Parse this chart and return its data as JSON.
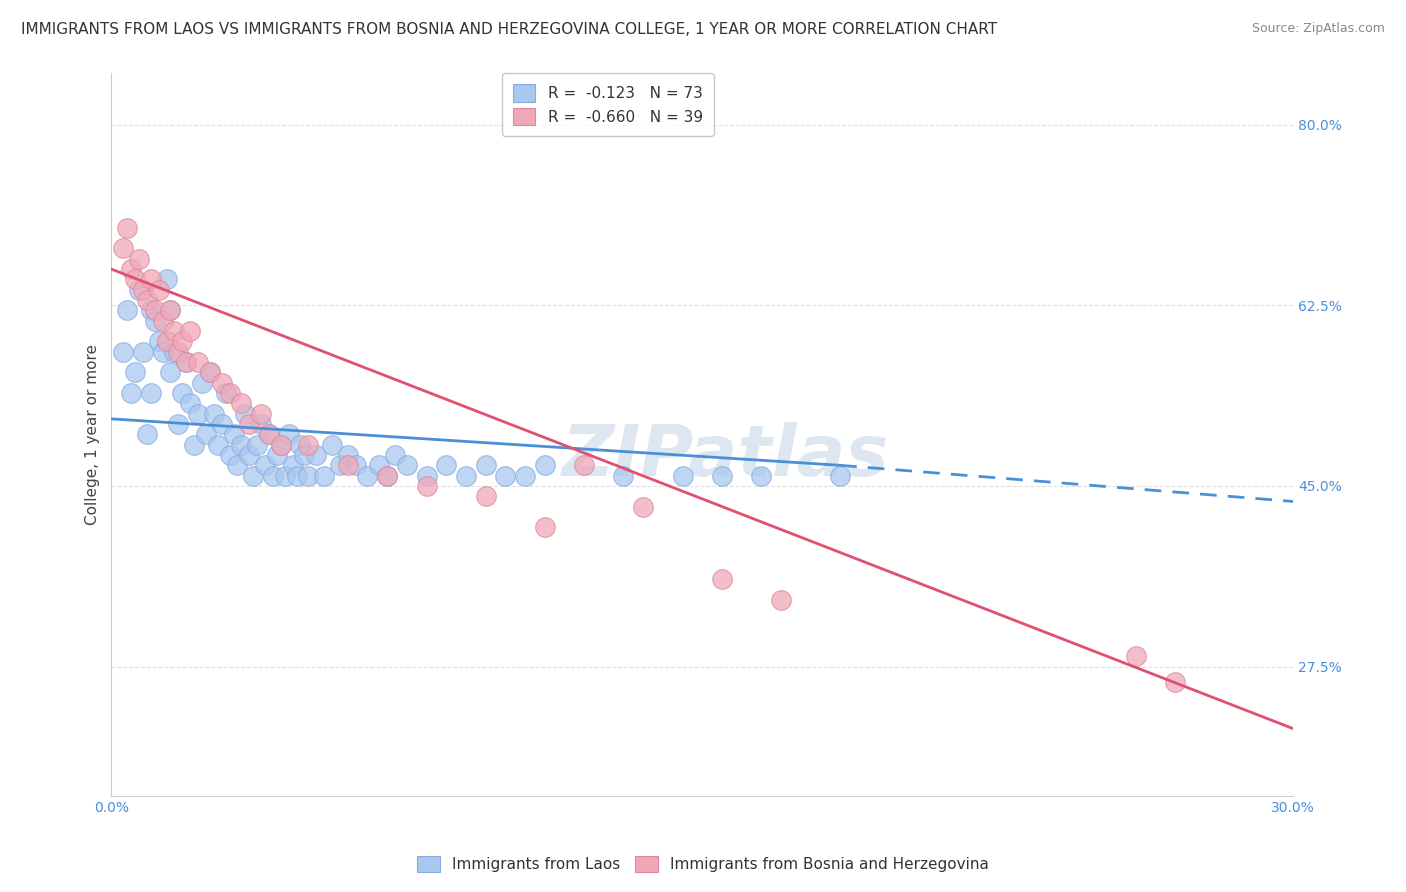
{
  "title": "IMMIGRANTS FROM LAOS VS IMMIGRANTS FROM BOSNIA AND HERZEGOVINA COLLEGE, 1 YEAR OR MORE CORRELATION CHART",
  "source": "Source: ZipAtlas.com",
  "ylabel": "College, 1 year or more",
  "xlim": [
    0.0,
    0.3
  ],
  "ylim": [
    0.15,
    0.85
  ],
  "yticks": [
    0.275,
    0.45,
    0.625,
    0.8
  ],
  "ytick_labels": [
    "27.5%",
    "45.0%",
    "62.5%",
    "80.0%"
  ],
  "xticks": [
    0.0,
    0.05,
    0.1,
    0.15,
    0.2,
    0.25,
    0.3
  ],
  "xtick_labels": [
    "0.0%",
    "",
    "",
    "",
    "",
    "",
    "30.0%"
  ],
  "legend_blue_r": "-0.123",
  "legend_blue_n": "73",
  "legend_pink_r": "-0.660",
  "legend_pink_n": "39",
  "blue_color": "#a8c8f0",
  "pink_color": "#f0a8b8",
  "blue_line_color": "#4a90d9",
  "pink_line_color": "#e05070",
  "watermark": "ZIPatlas",
  "blue_scatter_x": [
    0.003,
    0.004,
    0.005,
    0.006,
    0.007,
    0.008,
    0.009,
    0.01,
    0.01,
    0.011,
    0.012,
    0.013,
    0.014,
    0.015,
    0.015,
    0.016,
    0.017,
    0.018,
    0.019,
    0.02,
    0.021,
    0.022,
    0.023,
    0.024,
    0.025,
    0.026,
    0.027,
    0.028,
    0.029,
    0.03,
    0.031,
    0.032,
    0.033,
    0.034,
    0.035,
    0.036,
    0.037,
    0.038,
    0.039,
    0.04,
    0.041,
    0.042,
    0.043,
    0.044,
    0.045,
    0.046,
    0.047,
    0.048,
    0.049,
    0.05,
    0.052,
    0.054,
    0.056,
    0.058,
    0.06,
    0.062,
    0.065,
    0.068,
    0.07,
    0.072,
    0.075,
    0.08,
    0.085,
    0.09,
    0.095,
    0.1,
    0.105,
    0.11,
    0.13,
    0.145,
    0.155,
    0.165,
    0.185
  ],
  "blue_scatter_y": [
    0.58,
    0.62,
    0.54,
    0.56,
    0.64,
    0.58,
    0.5,
    0.62,
    0.54,
    0.61,
    0.59,
    0.58,
    0.65,
    0.62,
    0.56,
    0.58,
    0.51,
    0.54,
    0.57,
    0.53,
    0.49,
    0.52,
    0.55,
    0.5,
    0.56,
    0.52,
    0.49,
    0.51,
    0.54,
    0.48,
    0.5,
    0.47,
    0.49,
    0.52,
    0.48,
    0.46,
    0.49,
    0.51,
    0.47,
    0.5,
    0.46,
    0.48,
    0.49,
    0.46,
    0.5,
    0.47,
    0.46,
    0.49,
    0.48,
    0.46,
    0.48,
    0.46,
    0.49,
    0.47,
    0.48,
    0.47,
    0.46,
    0.47,
    0.46,
    0.48,
    0.47,
    0.46,
    0.47,
    0.46,
    0.47,
    0.46,
    0.46,
    0.47,
    0.46,
    0.46,
    0.46,
    0.46,
    0.46
  ],
  "pink_scatter_x": [
    0.003,
    0.004,
    0.005,
    0.006,
    0.007,
    0.008,
    0.009,
    0.01,
    0.011,
    0.012,
    0.013,
    0.014,
    0.015,
    0.016,
    0.017,
    0.018,
    0.019,
    0.02,
    0.022,
    0.025,
    0.028,
    0.03,
    0.033,
    0.035,
    0.038,
    0.04,
    0.043,
    0.05,
    0.06,
    0.07,
    0.08,
    0.095,
    0.11,
    0.12,
    0.135,
    0.155,
    0.17,
    0.26,
    0.27
  ],
  "pink_scatter_y": [
    0.68,
    0.7,
    0.66,
    0.65,
    0.67,
    0.64,
    0.63,
    0.65,
    0.62,
    0.64,
    0.61,
    0.59,
    0.62,
    0.6,
    0.58,
    0.59,
    0.57,
    0.6,
    0.57,
    0.56,
    0.55,
    0.54,
    0.53,
    0.51,
    0.52,
    0.5,
    0.49,
    0.49,
    0.47,
    0.46,
    0.45,
    0.44,
    0.41,
    0.47,
    0.43,
    0.36,
    0.34,
    0.285,
    0.26
  ],
  "blue_trend_x0": 0.0,
  "blue_trend_y0": 0.515,
  "blue_trend_x1_solid": 0.185,
  "blue_trend_y1_solid": 0.47,
  "blue_trend_x1_dash": 0.3,
  "blue_trend_y1_dash": 0.435,
  "pink_trend_x0": 0.0,
  "pink_trend_y0": 0.66,
  "pink_trend_x1": 0.3,
  "pink_trend_y1": 0.215,
  "grid_color": "#dddddd",
  "background_color": "#ffffff",
  "title_fontsize": 11,
  "axis_label_fontsize": 11,
  "tick_fontsize": 10,
  "tick_color": "#4a90d9",
  "source_fontsize": 9
}
